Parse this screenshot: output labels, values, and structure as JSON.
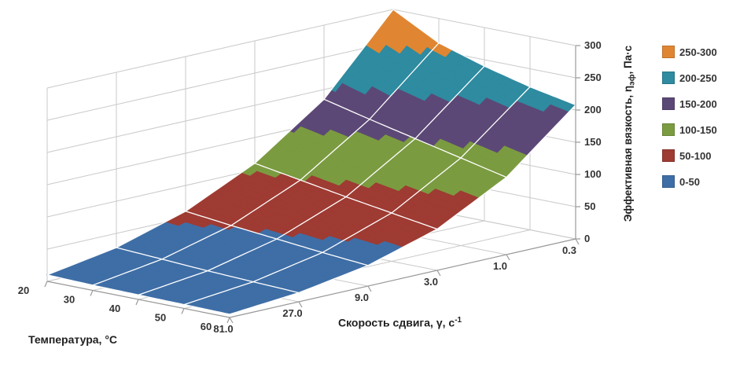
{
  "chart_data": {
    "type": "surface",
    "title": "",
    "x_axis": {
      "title": "Температура,  °С",
      "ticks": [
        "20",
        "30",
        "40",
        "50",
        "60"
      ],
      "values": [
        20,
        30,
        40,
        50,
        60
      ]
    },
    "y_axis": {
      "title_base": "Скорость  сдвига, γ, с",
      "title_sup": "-1",
      "ticks": [
        "81.0",
        "27.0",
        "9.0",
        "3.0",
        "1.0",
        "0.3"
      ],
      "values": [
        81,
        27,
        9,
        3,
        1,
        0.3
      ]
    },
    "z_axis": {
      "title_pre": "Эффективная  вязкость,  η",
      "title_sub": "эф",
      "title_post": ", Па·с",
      "ticks": [
        "0",
        "50",
        "100",
        "150",
        "200",
        "250",
        "300"
      ],
      "min": 0,
      "max": 300,
      "step": 50
    },
    "series": [
      {
        "shear_rate": "81.0",
        "values": [
          10,
          8,
          7,
          6,
          5
        ]
      },
      {
        "shear_rate": "27.0",
        "values": [
          28,
          24,
          20,
          17,
          14
        ]
      },
      {
        "shear_rate": "9.0",
        "values": [
          60,
          52,
          45,
          38,
          32
        ]
      },
      {
        "shear_rate": "3.0",
        "values": [
          110,
          98,
          86,
          75,
          64
        ]
      },
      {
        "shear_rate": "1.0",
        "values": [
          185,
          168,
          152,
          136,
          120
        ]
      },
      {
        "shear_rate": "0.3",
        "values": [
          300,
          262,
          240,
          222,
          208
        ]
      }
    ],
    "band_step": 50,
    "bands": [
      {
        "label": "0-50",
        "color": "#3F6EA6"
      },
      {
        "label": "50-100",
        "color": "#9E3B33"
      },
      {
        "label": "100-150",
        "color": "#7B9B40"
      },
      {
        "label": "150-200",
        "color": "#5C4876"
      },
      {
        "label": "200-250",
        "color": "#2E8BA0"
      },
      {
        "label": "250-300",
        "color": "#E08632"
      }
    ],
    "legend_position": "right",
    "grid": true,
    "mesh_color": "#FFFFFF",
    "grid_color": "#C9C9C9",
    "axis_color": "#9A9A9A",
    "text_color": "#333333",
    "background": "#FFFFFF"
  }
}
